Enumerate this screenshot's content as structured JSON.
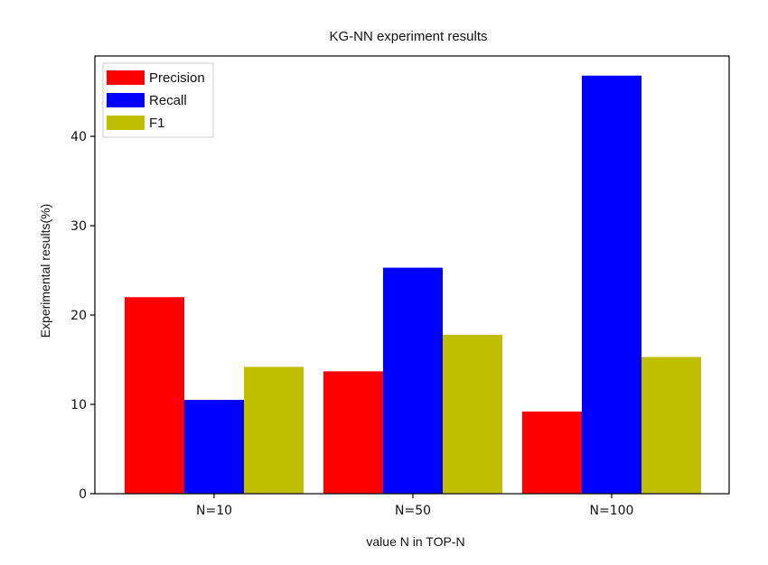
{
  "chart_data": {
    "type": "bar",
    "title": "KG-NN experiment results",
    "xlabel": "value N in TOP-N",
    "ylabel": "Experimental results(%)",
    "categories": [
      "N=10",
      "N=50",
      "N=100"
    ],
    "series": [
      {
        "name": "Precision",
        "color": "#ff0000",
        "values": [
          22.0,
          13.7,
          9.2
        ]
      },
      {
        "name": "Recall",
        "color": "#0000ff",
        "values": [
          10.5,
          25.3,
          46.8
        ]
      },
      {
        "name": "F1",
        "color": "#bfbf00",
        "values": [
          14.2,
          17.8,
          15.3
        ]
      }
    ],
    "ylim": [
      0,
      49
    ],
    "yticks": [
      0,
      10,
      20,
      30,
      40
    ],
    "grid": false,
    "legend_position": "top-left"
  }
}
